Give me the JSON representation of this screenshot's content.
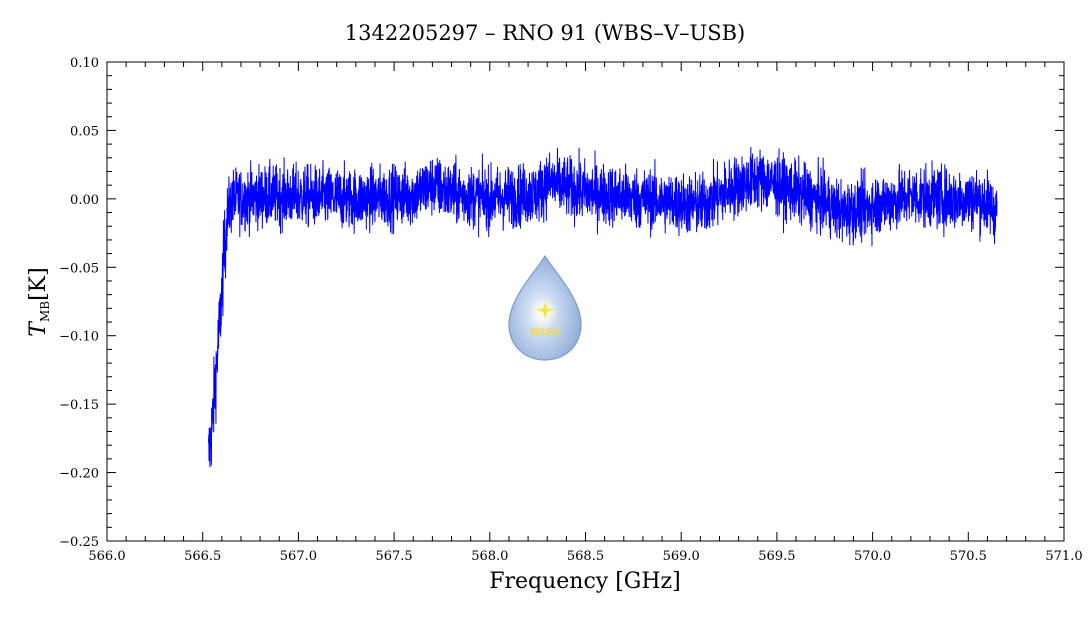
{
  "chart_data": {
    "type": "line",
    "title": "1342205297 – RNO 91 (WBS–V–USB)",
    "xlabel": "Frequency [GHz]",
    "ylabel_main": "T",
    "ylabel_sub": "MB",
    "ylabel_unit": "[K]",
    "xlim": [
      566.0,
      571.0
    ],
    "ylim": [
      -0.25,
      0.1
    ],
    "x_ticks": [
      566.0,
      566.5,
      567.0,
      567.5,
      568.0,
      568.5,
      569.0,
      569.5,
      570.0,
      570.5,
      571.0
    ],
    "x_tick_labels": [
      "566.0",
      "566.5",
      "567.0",
      "567.5",
      "568.0",
      "568.5",
      "569.0",
      "569.5",
      "570.0",
      "570.5",
      "571.0"
    ],
    "y_ticks": [
      -0.25,
      -0.2,
      -0.15,
      -0.1,
      -0.05,
      0.0,
      0.05,
      0.1
    ],
    "y_tick_labels": [
      "−0.25",
      "−0.20",
      "−0.15",
      "−0.10",
      "−0.05",
      "0.00",
      "0.05",
      "0.10"
    ],
    "grid": false,
    "line_color": "#0000ff",
    "series_profile": {
      "x": [
        566.53,
        566.55,
        566.57,
        566.59,
        566.61,
        566.63,
        566.66,
        566.7,
        566.8,
        567.0,
        567.3,
        567.6,
        567.7,
        567.8,
        568.0,
        568.25,
        568.3,
        568.5,
        568.8,
        569.1,
        569.3,
        569.4,
        569.5,
        569.7,
        569.85,
        570.0,
        570.2,
        570.4,
        570.55,
        570.62,
        570.65
      ],
      "y": [
        -0.19,
        -0.165,
        -0.125,
        -0.09,
        -0.045,
        -0.01,
        0.0,
        0.0,
        0.002,
        0.002,
        0.0,
        0.003,
        0.01,
        0.004,
        0.0,
        0.004,
        0.012,
        0.005,
        0.0,
        -0.005,
        0.01,
        0.015,
        0.01,
        0.0,
        -0.01,
        -0.005,
        0.002,
        0.0,
        0.0,
        -0.005,
        -0.01
      ],
      "noise_amplitude": 0.022
    },
    "watermark": "WISH"
  }
}
